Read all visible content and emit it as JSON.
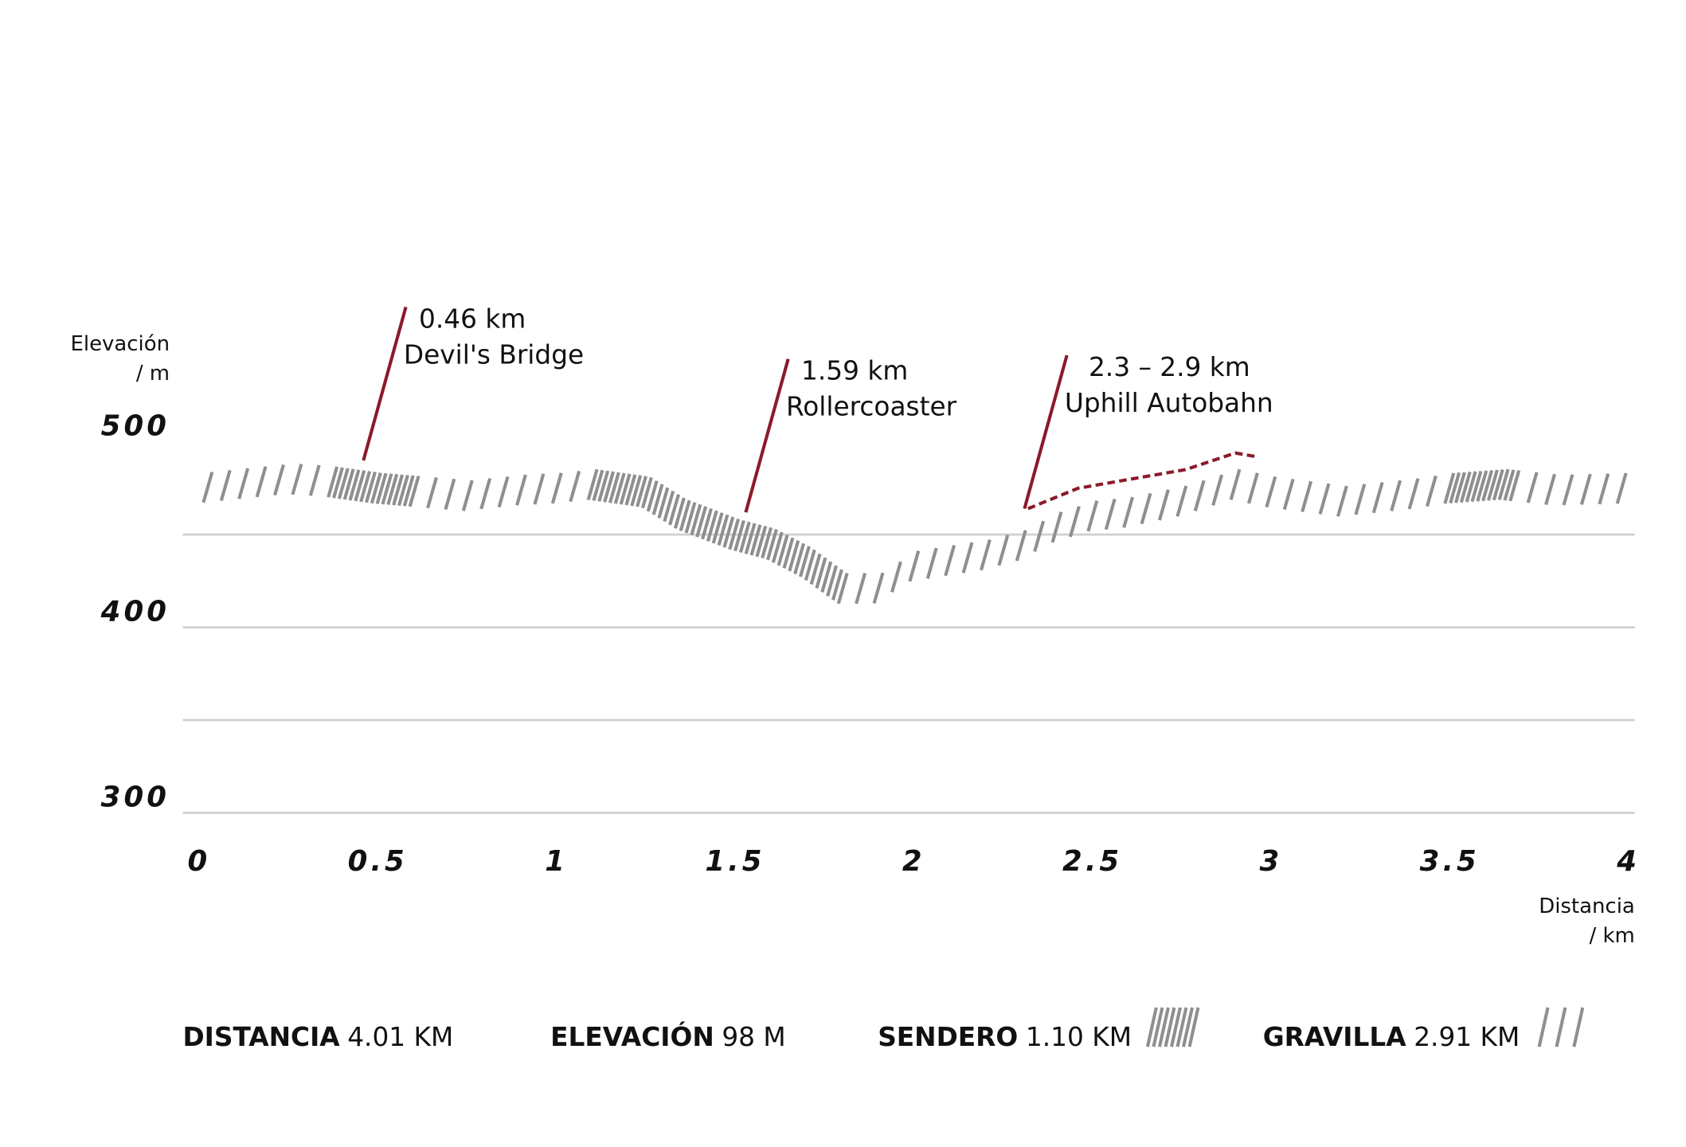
{
  "chart_data": {
    "type": "elevation-profile",
    "y_label": [
      "Elevación",
      "/ m"
    ],
    "x_label": [
      "Distancia",
      "/ km"
    ],
    "x": [
      0,
      0.25,
      0.35,
      0.5,
      0.75,
      0.9,
      1.0,
      1.1,
      1.25,
      1.35,
      1.5,
      1.6,
      1.7,
      1.8,
      1.9,
      2.0,
      2.1,
      2.2,
      2.3,
      2.4,
      2.5,
      2.6,
      2.75,
      2.9,
      3.0,
      3.2,
      3.4,
      3.5,
      3.65,
      3.8,
      4.0
    ],
    "values": [
      475,
      480,
      479,
      475,
      471,
      474,
      475,
      477,
      473,
      461,
      450,
      445,
      435,
      421,
      421,
      433,
      436,
      439,
      444,
      454,
      460,
      462,
      468,
      477,
      473,
      468,
      472,
      475,
      477,
      474,
      475
    ],
    "color": "#8f8f8f",
    "sendero_ranges": [
      [
        0.35,
        0.6
      ],
      [
        1.1,
        1.8
      ],
      [
        3.45,
        3.67
      ]
    ],
    "highlight": {
      "color": "#8b1a2b",
      "x": [
        2.32,
        2.46,
        2.61,
        2.76,
        2.9,
        2.96
      ],
      "values": [
        464,
        475,
        480,
        485,
        494,
        492
      ]
    },
    "annotations": [
      {
        "x": 0.46,
        "y": 490,
        "lines": [
          "0.46 km",
          "Devil's Bridge"
        ]
      },
      {
        "x": 1.53,
        "y": 462,
        "lines": [
          "1.59 km",
          "Rollercoaster"
        ]
      },
      {
        "x": 2.31,
        "y": 464,
        "lines": [
          "2.3 – 2.9 km",
          "Uphill Autobahn"
        ]
      }
    ],
    "annotation_color": "#8b1a2b",
    "xlim": [
      0,
      4
    ],
    "xticks": [
      0,
      0.5,
      1,
      1.5,
      2,
      2.5,
      3,
      3.5,
      4
    ],
    "ylim": [
      300,
      580
    ],
    "yticks": [
      300,
      400,
      500
    ],
    "grid_lines": [
      300,
      350,
      400,
      450
    ],
    "stats": [
      {
        "label": "DISTANCIA",
        "value": "4.01 KM"
      },
      {
        "label": "ELEVACIÓN",
        "value": "98 M"
      },
      {
        "label": "SENDERO",
        "value": "1.10 KM"
      },
      {
        "label": "GRAVILLA",
        "value": "2.91 KM"
      }
    ]
  }
}
